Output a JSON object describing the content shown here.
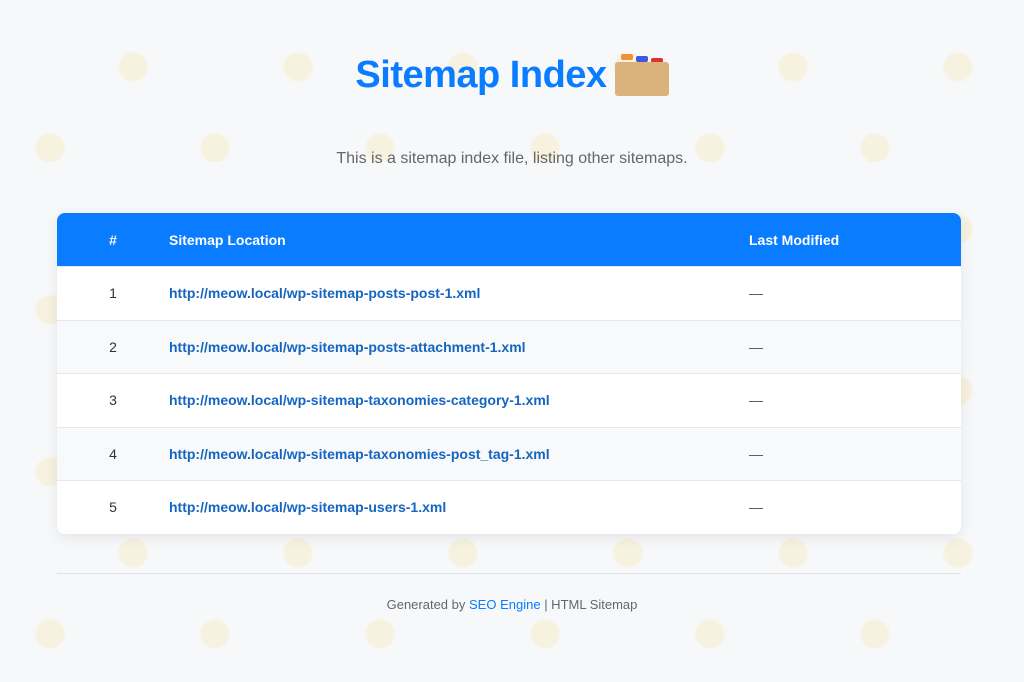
{
  "header": {
    "title": "Sitemap Index",
    "icon": "card-file-box-icon",
    "subtitle": "This is a sitemap index file, listing other sitemaps."
  },
  "table": {
    "columns": [
      "#",
      "Sitemap Location",
      "Last Modified"
    ],
    "rows": [
      {
        "num": "1",
        "location": "http://meow.local/wp-sitemap-posts-post-1.xml",
        "modified": "—"
      },
      {
        "num": "2",
        "location": "http://meow.local/wp-sitemap-posts-attachment-1.xml",
        "modified": "—"
      },
      {
        "num": "3",
        "location": "http://meow.local/wp-sitemap-taxonomies-category-1.xml",
        "modified": "—"
      },
      {
        "num": "4",
        "location": "http://meow.local/wp-sitemap-taxonomies-post_tag-1.xml",
        "modified": "—"
      },
      {
        "num": "5",
        "location": "http://meow.local/wp-sitemap-users-1.xml",
        "modified": "—"
      }
    ]
  },
  "footer": {
    "prefix": "Generated by",
    "link": "SEO Engine",
    "suffix": "| HTML Sitemap"
  },
  "colors": {
    "accent": "#0a7cff",
    "link": "#1565c0"
  }
}
